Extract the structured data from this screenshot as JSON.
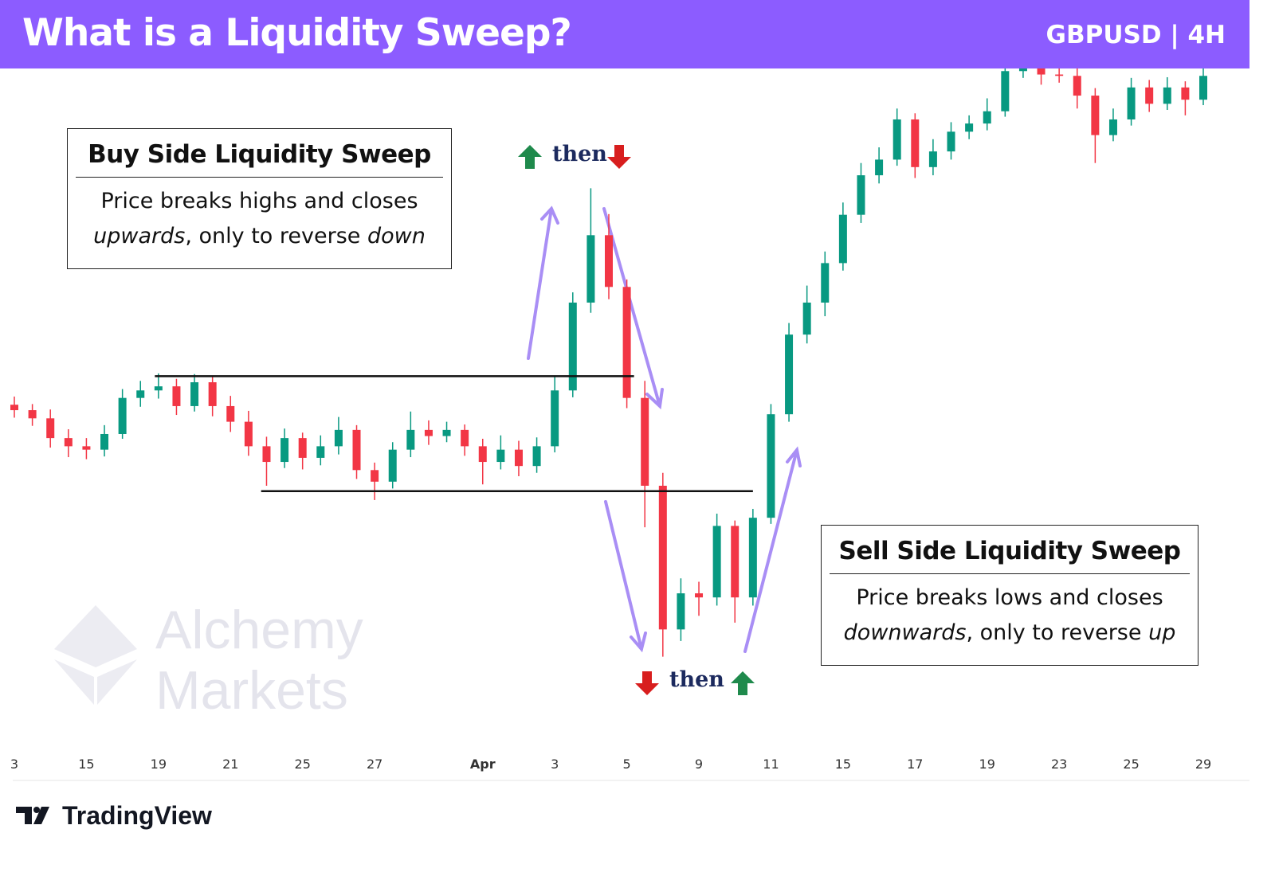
{
  "header": {
    "title": "What is a Liquidity Sweep?",
    "badge": "GBPUSD | 4H"
  },
  "annotations": {
    "buy_box": {
      "title": "Buy Side Liquidity Sweep",
      "line1": "Price breaks highs and closes",
      "italic1": "upwards",
      "mid": ", only to reverse ",
      "italic2": "down"
    },
    "sell_box": {
      "title": "Sell Side Liquidity Sweep",
      "line1": "Price breaks lows and closes",
      "italic1": "downwards",
      "mid": ", only to reverse ",
      "italic2": "up"
    },
    "top_then": "then",
    "bottom_then": "then"
  },
  "watermark": {
    "line1": "Alchemy",
    "line2": "Markets"
  },
  "footer": {
    "brand": "TradingView"
  },
  "chart_data": {
    "type": "candlestick",
    "up_color": "#089981",
    "down_color": "#f23645",
    "level_color": "#111111",
    "xlim": [
      0,
      66
    ],
    "ylim": [
      0,
      100
    ],
    "xticks": [
      {
        "value": 0,
        "label": "3"
      },
      {
        "value": 4,
        "label": "15"
      },
      {
        "value": 8,
        "label": "19"
      },
      {
        "value": 12,
        "label": "21"
      },
      {
        "value": 16,
        "label": "25"
      },
      {
        "value": 20,
        "label": "27"
      },
      {
        "value": 26,
        "label": "Apr"
      },
      {
        "value": 30,
        "label": "3"
      },
      {
        "value": 34,
        "label": "5"
      },
      {
        "value": 38,
        "label": "9"
      },
      {
        "value": 42,
        "label": "11"
      },
      {
        "value": 46,
        "label": "15"
      },
      {
        "value": 50,
        "label": "17"
      },
      {
        "value": 54,
        "label": "19"
      },
      {
        "value": 58,
        "label": "23"
      },
      {
        "value": 62,
        "label": "25"
      },
      {
        "value": 66,
        "label": "29"
      }
    ],
    "open": [
      50.5,
      49.7,
      48.5,
      45.6,
      44.4,
      43.9,
      46.2,
      51.5,
      52.6,
      53.2,
      50.3,
      53.8,
      50.3,
      48.0,
      44.4,
      42.1,
      45.6,
      42.7,
      44.4,
      46.8,
      40.9,
      39.2,
      43.9,
      46.8,
      45.9,
      46.8,
      44.4,
      42.1,
      43.9,
      41.5,
      44.4,
      52.6,
      65.5,
      75.4,
      67.8,
      51.5,
      38.6,
      17.5,
      22.8,
      22.2,
      32.7,
      22.2,
      33.9,
      49.1,
      60.8,
      65.5,
      71.3,
      78.4,
      84.2,
      86.5,
      92.4,
      85.4,
      87.7,
      90.6,
      91.8,
      93.6,
      99.5,
      101,
      99,
      98.8,
      95.9,
      90.1,
      92.4,
      97.1,
      94.7,
      97.1,
      95.3
    ],
    "high": [
      51.7,
      50.6,
      49.8,
      46.9,
      45.6,
      47.5,
      52.8,
      54.0,
      55.1,
      54.3,
      55.0,
      54.6,
      51.8,
      49.6,
      45.8,
      47.0,
      46.4,
      46.0,
      48.7,
      47.5,
      42.0,
      45.0,
      49.5,
      48.2,
      48.0,
      47.6,
      45.5,
      46.0,
      45.2,
      45.7,
      54.8,
      67.0,
      82.3,
      78.5,
      68.9,
      54.0,
      40.5,
      25.0,
      24.5,
      34.5,
      33.5,
      35.2,
      50.6,
      62.5,
      68.0,
      73.0,
      80.2,
      86.0,
      88.3,
      94.0,
      93.3,
      89.5,
      92.0,
      93.0,
      95.5,
      101.5,
      102.5,
      102.3,
      101.0,
      100.0,
      97.0,
      94.0,
      98.5,
      98.2,
      98.6,
      98.0,
      100.0
    ],
    "low": [
      48.6,
      47.4,
      44.2,
      42.8,
      42.5,
      42.9,
      45.5,
      50.2,
      51.4,
      49.0,
      49.5,
      48.8,
      46.5,
      43.0,
      38.6,
      41.2,
      41.0,
      41.6,
      43.2,
      39.6,
      36.5,
      38.2,
      42.8,
      44.6,
      45.0,
      43.0,
      38.8,
      41.0,
      40.0,
      40.5,
      43.5,
      51.6,
      64.0,
      66.0,
      50.0,
      32.5,
      13.5,
      15.8,
      19.5,
      21.0,
      18.5,
      21.0,
      33.0,
      48.0,
      59.5,
      63.5,
      70.2,
      77.2,
      83.0,
      85.6,
      83.8,
      84.2,
      86.5,
      89.5,
      90.8,
      92.8,
      98.5,
      97.5,
      97.8,
      94.0,
      86.0,
      89.2,
      91.5,
      93.5,
      93.8,
      93.0,
      94.5
    ],
    "close": [
      49.7,
      48.5,
      45.6,
      44.4,
      43.9,
      46.2,
      51.5,
      52.6,
      53.2,
      50.3,
      53.8,
      50.3,
      48.0,
      44.4,
      42.1,
      45.6,
      42.7,
      44.4,
      46.8,
      40.9,
      39.2,
      43.9,
      46.8,
      45.9,
      46.8,
      44.4,
      42.1,
      43.9,
      41.5,
      44.4,
      52.6,
      65.5,
      75.4,
      67.8,
      51.5,
      38.6,
      17.5,
      22.8,
      22.2,
      32.7,
      22.2,
      33.9,
      49.1,
      60.8,
      65.5,
      71.3,
      78.4,
      84.2,
      86.5,
      92.4,
      85.4,
      87.7,
      90.6,
      91.8,
      93.6,
      99.5,
      101,
      99,
      98.8,
      95.9,
      90.1,
      92.4,
      97.1,
      94.7,
      97.1,
      95.3,
      98.8
    ],
    "levels": [
      {
        "value": 54.7,
        "xlim": [
          7.8,
          34.4
        ]
      },
      {
        "value": 37.8,
        "xlim": [
          13.7,
          41.0
        ]
      }
    ]
  }
}
